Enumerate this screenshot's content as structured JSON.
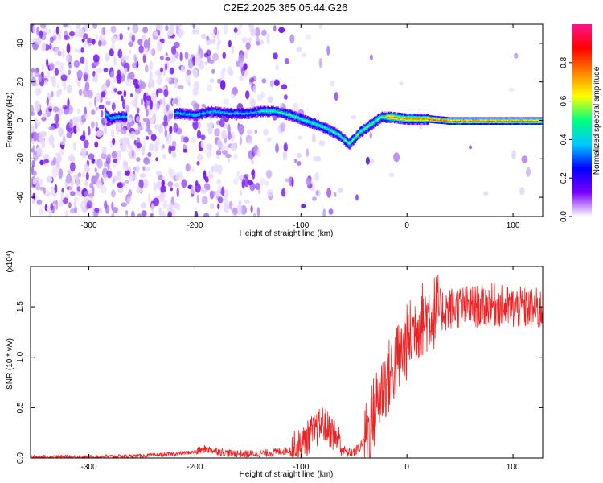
{
  "title": "C2E2.2025.365.05.44.G26",
  "colorbar": {
    "label": "Normalized spectral amplitude",
    "ticks": [
      "0.0",
      "0.2",
      "0.4",
      "0.6",
      "0.8"
    ],
    "tick_values": [
      0.0,
      0.2,
      0.4,
      0.6,
      0.8
    ],
    "range": [
      0,
      1
    ],
    "colors": [
      "#ffffff",
      "#7b00ff",
      "#0000ff",
      "#00c8ff",
      "#00ff80",
      "#ffff00",
      "#ff8000",
      "#ff0000",
      "#ff1493"
    ]
  },
  "chart_data": [
    {
      "type": "heatmap",
      "xlabel": "Height of straight line (km)",
      "ylabel": "Frequency (Hz)",
      "xlim": [
        -355,
        128
      ],
      "ylim": [
        -50,
        50
      ],
      "x_ticks": [
        -300,
        -200,
        -100,
        0,
        100
      ],
      "x_tick_labels": [
        "-300",
        "-200",
        "-100",
        "0",
        "100"
      ],
      "y_ticks": [
        -40,
        -20,
        0,
        20,
        40
      ],
      "y_tick_labels": [
        "-40",
        "-20",
        "0",
        "20",
        "40"
      ],
      "ridge": [
        {
          "x": -285,
          "y": 4
        },
        {
          "x": -280,
          "y": 1
        },
        {
          "x": -275,
          "y": 2
        },
        {
          "x": -215,
          "y": 4
        },
        {
          "x": -200,
          "y": 3
        },
        {
          "x": -185,
          "y": 5
        },
        {
          "x": -170,
          "y": 4
        },
        {
          "x": -150,
          "y": 4
        },
        {
          "x": -140,
          "y": 5
        },
        {
          "x": -125,
          "y": 5
        },
        {
          "x": -110,
          "y": 3
        },
        {
          "x": -95,
          "y": 0
        },
        {
          "x": -80,
          "y": -3
        },
        {
          "x": -65,
          "y": -7
        },
        {
          "x": -55,
          "y": -12
        },
        {
          "x": -45,
          "y": -6
        },
        {
          "x": -35,
          "y": -2
        },
        {
          "x": -25,
          "y": 2
        },
        {
          "x": -15,
          "y": 2
        },
        {
          "x": 0,
          "y": 1
        },
        {
          "x": 20,
          "y": 1
        },
        {
          "x": 40,
          "y": 0
        },
        {
          "x": 60,
          "y": 0
        },
        {
          "x": 80,
          "y": 0
        },
        {
          "x": 100,
          "y": 0
        },
        {
          "x": 128,
          "y": 0
        }
      ],
      "isolated_blobs": [
        {
          "x": -37,
          "y": -21
        }
      ]
    },
    {
      "type": "line",
      "xlabel": "Height of straight line (km)",
      "ylabel": "SNR (10 * v/v)",
      "y_multiplier": "(x10⁴)",
      "xlim": [
        -355,
        128
      ],
      "ylim": [
        0,
        1.9
      ],
      "x_ticks": [
        -300,
        -200,
        -100,
        0,
        100
      ],
      "x_tick_labels": [
        "-300",
        "-200",
        "-100",
        "0",
        "100"
      ],
      "y_ticks": [
        0,
        0.5,
        1.0,
        1.5
      ],
      "y_tick_labels": [
        "0.0",
        "0.5",
        "1.0",
        "1.5"
      ],
      "color": "#ee2222",
      "series": [
        {
          "x": [
            -355,
            -300,
            -250,
            -220,
            -200,
            -190,
            -180,
            -170,
            -150,
            -130,
            -110,
            -100,
            -95,
            -90,
            -85,
            -80,
            -75,
            -70,
            -65,
            -60,
            -55,
            -50,
            -45,
            -40,
            -35,
            -30,
            -25,
            -20,
            -15,
            -10,
            -5,
            0,
            5,
            10,
            15,
            20,
            25,
            30,
            40,
            50,
            60,
            70,
            80,
            90,
            100,
            110,
            120,
            128
          ],
          "y": [
            0.01,
            0.01,
            0.02,
            0.04,
            0.06,
            0.09,
            0.07,
            0.05,
            0.04,
            0.05,
            0.08,
            0.12,
            0.18,
            0.25,
            0.28,
            0.35,
            0.3,
            0.25,
            0.18,
            0.08,
            0.05,
            0.06,
            0.1,
            0.2,
            0.3,
            0.5,
            0.65,
            0.75,
            0.85,
            0.95,
            1.05,
            1.15,
            1.25,
            1.33,
            1.38,
            1.42,
            1.45,
            1.46,
            1.48,
            1.5,
            1.5,
            1.5,
            1.52,
            1.5,
            1.49,
            1.48,
            1.47,
            1.47
          ]
        }
      ]
    }
  ]
}
